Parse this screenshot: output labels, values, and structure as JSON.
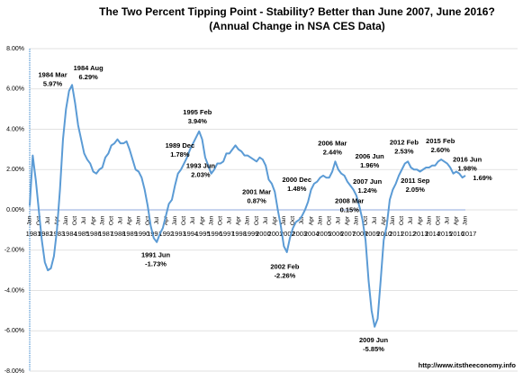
{
  "chart_data": {
    "type": "line",
    "title": "The Two Percent Tipping Point - Stability? Better than June 2007, June 2016?",
    "subtitle": "(Annual Change in NSA CES Data)",
    "source": "http://www.itstheeconomy.info",
    "color": "#5b9bd5",
    "grid": true,
    "ylim": [
      -8,
      8
    ],
    "yticks": [
      {
        "value": -8,
        "label": "-8.00%"
      },
      {
        "value": -6,
        "label": "-6.00%"
      },
      {
        "value": -4,
        "label": "-4.00%"
      },
      {
        "value": -2,
        "label": "-2.00%"
      },
      {
        "value": 0,
        "label": "0.00%"
      },
      {
        "value": 2,
        "label": "2.00%"
      },
      {
        "value": 4,
        "label": "4.00%"
      },
      {
        "value": 6,
        "label": "6.00%"
      },
      {
        "value": 8,
        "label": "8.00%"
      }
    ],
    "xlim": [
      "1981-01",
      "2017-01"
    ],
    "month_labels": [
      "Jan",
      "Apr",
      "Jul",
      "Oct"
    ],
    "years": [
      1981,
      1982,
      1983,
      1984,
      1985,
      1986,
      1987,
      1988,
      1989,
      1990,
      1991,
      1992,
      1993,
      1994,
      1995,
      1996,
      1997,
      1998,
      1999,
      2000,
      2001,
      2002,
      2003,
      2004,
      2005,
      2006,
      2007,
      2008,
      2009,
      2010,
      2011,
      2012,
      2013,
      2014,
      2015,
      2016,
      2017
    ],
    "x": [
      "1981-01",
      "1981-04",
      "1981-07",
      "1981-10",
      "1982-01",
      "1982-04",
      "1982-07",
      "1982-10",
      "1983-01",
      "1983-04",
      "1983-07",
      "1983-10",
      "1984-01",
      "1984-04",
      "1984-07",
      "1984-10",
      "1985-01",
      "1985-04",
      "1985-07",
      "1985-10",
      "1986-01",
      "1986-04",
      "1986-07",
      "1986-10",
      "1987-01",
      "1987-04",
      "1987-07",
      "1987-10",
      "1988-01",
      "1988-04",
      "1988-07",
      "1988-10",
      "1989-01",
      "1989-04",
      "1989-07",
      "1989-10",
      "1990-01",
      "1990-04",
      "1990-07",
      "1990-10",
      "1991-01",
      "1991-04",
      "1991-07",
      "1991-10",
      "1992-01",
      "1992-04",
      "1992-07",
      "1992-10",
      "1993-01",
      "1993-04",
      "1993-07",
      "1993-10",
      "1994-01",
      "1994-04",
      "1994-07",
      "1994-10",
      "1995-01",
      "1995-04",
      "1995-07",
      "1995-10",
      "1996-01",
      "1996-04",
      "1996-07",
      "1996-10",
      "1997-01",
      "1997-04",
      "1997-07",
      "1997-10",
      "1998-01",
      "1998-04",
      "1998-07",
      "1998-10",
      "1999-01",
      "1999-04",
      "1999-07",
      "1999-10",
      "2000-01",
      "2000-04",
      "2000-07",
      "2000-10",
      "2001-01",
      "2001-04",
      "2001-07",
      "2001-10",
      "2002-01",
      "2002-04",
      "2002-07",
      "2002-10",
      "2003-01",
      "2003-04",
      "2003-07",
      "2003-10",
      "2004-01",
      "2004-04",
      "2004-07",
      "2004-10",
      "2005-01",
      "2005-04",
      "2005-07",
      "2005-10",
      "2006-01",
      "2006-04",
      "2006-07",
      "2006-10",
      "2007-01",
      "2007-04",
      "2007-07",
      "2007-10",
      "2008-01",
      "2008-04",
      "2008-07",
      "2008-10",
      "2009-01",
      "2009-04",
      "2009-07",
      "2009-10",
      "2010-01",
      "2010-04",
      "2010-07",
      "2010-10",
      "2011-01",
      "2011-04",
      "2011-07",
      "2011-10",
      "2012-01",
      "2012-04",
      "2012-07",
      "2012-10",
      "2013-01",
      "2013-04",
      "2013-07",
      "2013-10",
      "2014-01",
      "2014-04",
      "2014-07",
      "2014-10",
      "2015-01",
      "2015-04",
      "2015-07",
      "2015-10",
      "2016-01",
      "2016-04",
      "2016-07",
      "2016-10",
      "2017-01"
    ],
    "values": [
      0.2,
      2.7,
      1.5,
      0.0,
      -1.5,
      -2.6,
      -3.0,
      -2.9,
      -2.3,
      -1.0,
      1.0,
      3.5,
      5.0,
      5.9,
      6.2,
      5.3,
      4.2,
      3.5,
      2.8,
      2.5,
      2.3,
      1.9,
      1.8,
      2.0,
      2.1,
      2.6,
      2.8,
      3.2,
      3.3,
      3.5,
      3.3,
      3.3,
      3.4,
      3.0,
      2.5,
      2.0,
      1.9,
      1.6,
      1.0,
      0.2,
      -0.8,
      -1.4,
      -1.6,
      -1.2,
      -0.9,
      -0.3,
      0.3,
      0.5,
      1.2,
      1.8,
      2.0,
      2.3,
      2.6,
      3.0,
      3.3,
      3.6,
      3.9,
      3.5,
      2.6,
      2.2,
      1.8,
      2.0,
      2.3,
      2.3,
      2.4,
      2.8,
      2.8,
      3.0,
      3.2,
      3.0,
      2.9,
      2.7,
      2.7,
      2.6,
      2.5,
      2.4,
      2.6,
      2.5,
      2.2,
      1.5,
      1.3,
      0.9,
      0.0,
      -0.8,
      -1.8,
      -2.1,
      -1.4,
      -0.9,
      -0.6,
      -0.5,
      -0.3,
      0.0,
      0.4,
      1.0,
      1.3,
      1.4,
      1.6,
      1.7,
      1.6,
      1.6,
      1.9,
      2.4,
      2.0,
      1.8,
      1.7,
      1.4,
      1.2,
      1.0,
      0.7,
      0.15,
      -0.5,
      -1.5,
      -3.5,
      -5.0,
      -5.8,
      -5.4,
      -3.5,
      -1.5,
      -0.8,
      0.5,
      1.0,
      1.3,
      1.7,
      2.0,
      2.3,
      2.4,
      2.1,
      2.0,
      2.0,
      1.9,
      2.0,
      2.1,
      2.1,
      2.2,
      2.2,
      2.4,
      2.5,
      2.4,
      2.3,
      2.1,
      1.8,
      1.9,
      1.8,
      1.6,
      1.7
    ],
    "annotations": [
      {
        "date": "1984 Mar",
        "value_label": "5.97%",
        "x": "1984-03",
        "value": 5.97
      },
      {
        "date": "1984 Aug",
        "value_label": "6.29%",
        "x": "1984-08",
        "value": 6.29
      },
      {
        "date": "1989 Dec",
        "value_label": "1.78%",
        "x": "1989-12",
        "value": 1.78
      },
      {
        "date": "1991 Jun",
        "value_label": "-1.73%",
        "x": "1991-06",
        "value": -1.73
      },
      {
        "date": "1995 Feb",
        "value_label": "3.94%",
        "x": "1995-02",
        "value": 3.94
      },
      {
        "date": "1993 Jun",
        "value_label": "2.03%",
        "x": "1993-06",
        "value": 2.03
      },
      {
        "date": "2001 Mar",
        "value_label": "0.87%",
        "x": "2001-03",
        "value": 0.87
      },
      {
        "date": "2000 Dec",
        "value_label": "1.48%",
        "x": "2000-12",
        "value": 1.48
      },
      {
        "date": "2002 Feb",
        "value_label": "-2.26%",
        "x": "2002-02",
        "value": -2.26
      },
      {
        "date": "2006 Mar",
        "value_label": "2.44%",
        "x": "2006-03",
        "value": 2.44
      },
      {
        "date": "2006 Jun",
        "value_label": "1.96%",
        "x": "2006-06",
        "value": 1.96
      },
      {
        "date": "2008 Mar",
        "value_label": "0.15%",
        "x": "2008-03",
        "value": 0.15
      },
      {
        "date": "2007 Jun",
        "value_label": "1.24%",
        "x": "2007-06",
        "value": 1.24
      },
      {
        "date": "2009 Jun",
        "value_label": "-5.85%",
        "x": "2009-06",
        "value": -5.85
      },
      {
        "date": "2012 Feb",
        "value_label": "2.53%",
        "x": "2012-02",
        "value": 2.53
      },
      {
        "date": "2011 Sep",
        "value_label": "2.05%",
        "x": "2011-09",
        "value": 2.05
      },
      {
        "date": "2015 Feb",
        "value_label": "2.60%",
        "x": "2015-02",
        "value": 2.6
      },
      {
        "date": "2016 Jun",
        "value_label": "1.98%",
        "x": "2016-06",
        "value": 1.98
      },
      {
        "value_label": "1.69%",
        "x": "2017-01",
        "value": 1.69
      }
    ]
  }
}
